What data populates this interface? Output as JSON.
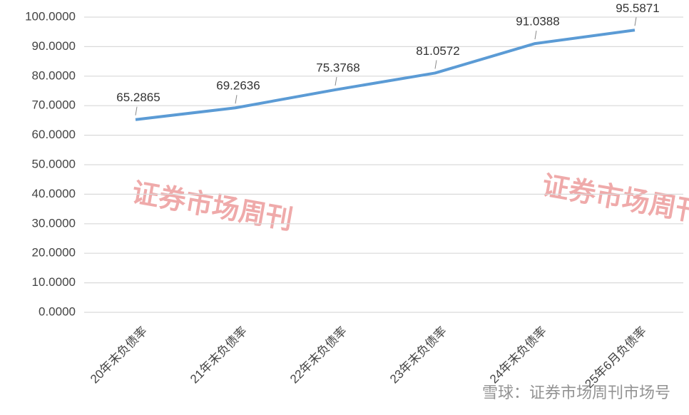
{
  "chart_data": {
    "type": "line",
    "categories": [
      "20年末负债率",
      "21年末负债率",
      "22年末负债率",
      "23年末负债率",
      "24年末负债率",
      "25年6月负债率"
    ],
    "series": [
      {
        "name": "负债率",
        "color": "#5b9bd5",
        "values": [
          65.2865,
          69.2636,
          75.3768,
          81.0572,
          91.0388,
          95.5871
        ]
      }
    ],
    "ylim": [
      0,
      100
    ],
    "yticks": [
      {
        "value": 0,
        "label": "0.0000"
      },
      {
        "value": 10,
        "label": "10.0000"
      },
      {
        "value": 20,
        "label": "20.0000"
      },
      {
        "value": 30,
        "label": "30.0000"
      },
      {
        "value": 40,
        "label": "40.0000"
      },
      {
        "value": 50,
        "label": "50.0000"
      },
      {
        "value": 60,
        "label": "60.0000"
      },
      {
        "value": 70,
        "label": "70.0000"
      },
      {
        "value": 80,
        "label": "80.0000"
      },
      {
        "value": 90,
        "label": "90.0000"
      },
      {
        "value": 100,
        "label": "100.0000"
      }
    ],
    "grid": true
  },
  "watermarks": [
    "证券市场周刊",
    "证券市场周刊"
  ],
  "footer": "雪球：证券市场周刊市场号"
}
